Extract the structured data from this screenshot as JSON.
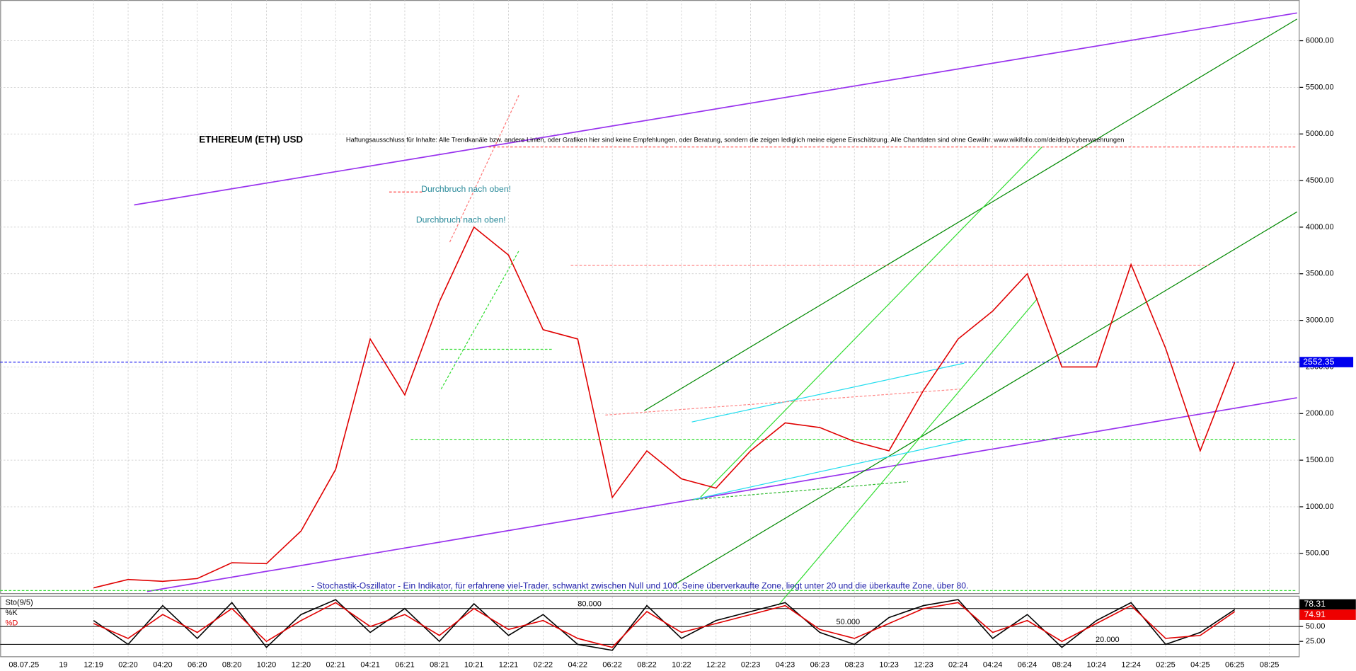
{
  "chart_data": [
    {
      "type": "line",
      "title": "ETHEREUM (ETH) USD",
      "subtitle": "Haftungsausschluss für Inhalte: Alle Trendkanäle bzw. andere Linien, oder Grafiken hier sind keine Empfehlungen, oder Beratung, sondern die zeigen lediglich meine eigene Einschätzung. Alle Chartdaten sind ohne Gewähr. www.wikifolio.com/de/de/p/cyberwaehrungen",
      "annotations": [
        "Durchbruch nach oben!",
        "Durchbruch nach oben!"
      ],
      "note": "- Stochastik-Oszillator - Ein Indikator, für erfahrene viel-Trader, schwankt zwischen Null und 100. Seine überverkaufte Zone, liegt unter 20 und die überkaufte Zone, über 80.",
      "axis_start_labels": [
        "08.07.25",
        "19"
      ],
      "categories": [
        "12:19",
        "02:20",
        "04:20",
        "06:20",
        "08:20",
        "10:20",
        "12:20",
        "02:21",
        "04:21",
        "06:21",
        "08:21",
        "10:21",
        "12:21",
        "02:22",
        "04:22",
        "06:22",
        "08:22",
        "10:22",
        "12:22",
        "02:23",
        "04:23",
        "06:23",
        "08:23",
        "10:23",
        "12:23",
        "02:24",
        "04:24",
        "06:24",
        "08:24",
        "10:24",
        "12:24",
        "02:25",
        "04:25",
        "06:25",
        "08:25"
      ],
      "series": [
        {
          "name": "ETH",
          "color": "#e00000",
          "values": [
            130,
            220,
            200,
            230,
            400,
            390,
            740,
            1400,
            2800,
            2200,
            3200,
            4000,
            3700,
            2900,
            2800,
            1100,
            1600,
            1300,
            1200,
            1600,
            1900,
            1850,
            1700,
            1600,
            2250,
            2800,
            3100,
            3500,
            2500,
            2500,
            3600,
            2700,
            1600,
            2552.35,
            null
          ]
        }
      ],
      "ylim": [
        73,
        6437
      ],
      "yticks": [
        {
          "value": 500,
          "label": "500.00"
        },
        {
          "value": 1000,
          "label": "1000.00"
        },
        {
          "value": 1500,
          "label": "1500.00"
        },
        {
          "value": 2000,
          "label": "2000.00"
        },
        {
          "value": 2500,
          "label": "2500.00"
        },
        {
          "value": 3000,
          "label": "3000.00"
        },
        {
          "value": 3500,
          "label": "3500.00"
        },
        {
          "value": 4000,
          "label": "4000.00"
        },
        {
          "value": 4500,
          "label": "4500.00"
        },
        {
          "value": 5000,
          "label": "5000.00"
        },
        {
          "value": 5500,
          "label": "5500.00"
        },
        {
          "value": 6000,
          "label": "6000.00"
        }
      ],
      "grid": true
    },
    {
      "type": "line",
      "title": "Sto(9/5)",
      "series": [
        {
          "name": "%K",
          "color": "#000000",
          "values": [
            60,
            20,
            85,
            30,
            90,
            15,
            70,
            95,
            40,
            80,
            25,
            88,
            35,
            70,
            20,
            10,
            85,
            30,
            60,
            75,
            90,
            40,
            20,
            65,
            85,
            95,
            30,
            70,
            15,
            60,
            90,
            20,
            40,
            78.31,
            null
          ]
        },
        {
          "name": "%D",
          "color": "#e00000",
          "values": [
            55,
            30,
            70,
            40,
            80,
            25,
            60,
            90,
            50,
            70,
            35,
            80,
            45,
            60,
            30,
            15,
            75,
            40,
            55,
            70,
            85,
            45,
            30,
            55,
            80,
            90,
            40,
            60,
            25,
            55,
            85,
            30,
            35,
            74.91,
            null
          ]
        }
      ],
      "ylim": [
        0,
        100
      ],
      "yticks": [
        {
          "value": 25,
          "label": "25.00"
        },
        {
          "value": 50,
          "label": "50.00"
        }
      ],
      "levels": [
        {
          "value": 80,
          "label": "80.000"
        },
        {
          "value": 50,
          "label": "50.000"
        },
        {
          "value": 20,
          "label": "20.000"
        }
      ]
    }
  ]
}
